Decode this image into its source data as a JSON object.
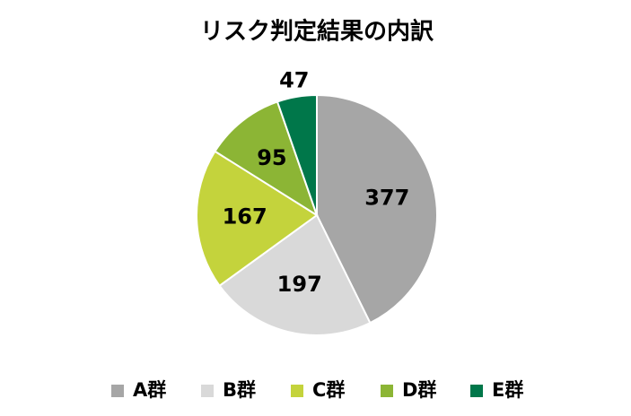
{
  "chart_data": {
    "type": "pie",
    "title": "リスク判定結果の内訳",
    "categories": [
      "A群",
      "B群",
      "C群",
      "D群",
      "E群"
    ],
    "values": [
      377,
      197,
      167,
      95,
      47
    ],
    "colors": [
      "#a6a6a6",
      "#d9d9d9",
      "#c4d33c",
      "#8cb535",
      "#00774a"
    ],
    "legend": "bottom"
  }
}
